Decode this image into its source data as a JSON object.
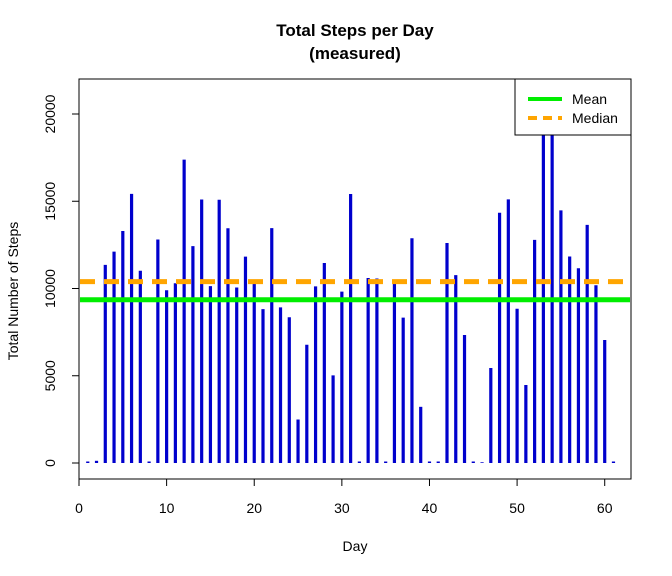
{
  "chart_data": {
    "type": "bar",
    "title": "Total Steps per Day",
    "subtitle": "(measured)",
    "xlabel": "Day",
    "ylabel": "Total Number of Steps",
    "xlim": [
      0,
      63
    ],
    "ylim": [
      0,
      22000
    ],
    "xticks": [
      0,
      10,
      20,
      30,
      40,
      50,
      60
    ],
    "yticks": [
      0,
      5000,
      10000,
      15000,
      20000
    ],
    "bar_color": "#0000cd",
    "grid": false,
    "legend_position": "top-right",
    "x": [
      1,
      2,
      3,
      4,
      5,
      6,
      7,
      8,
      9,
      10,
      11,
      12,
      13,
      14,
      15,
      16,
      17,
      18,
      19,
      20,
      21,
      22,
      23,
      24,
      25,
      26,
      27,
      28,
      29,
      30,
      31,
      32,
      33,
      34,
      35,
      36,
      37,
      38,
      39,
      40,
      41,
      42,
      43,
      44,
      45,
      46,
      47,
      48,
      49,
      50,
      51,
      52,
      53,
      54,
      55,
      56,
      57,
      58,
      59,
      60,
      61
    ],
    "values": [
      0,
      126,
      11352,
      12116,
      13294,
      15420,
      11015,
      0,
      12811,
      9900,
      10304,
      17382,
      12426,
      15098,
      10139,
      15084,
      13452,
      10056,
      11829,
      10395,
      8821,
      13460,
      8918,
      8355,
      2492,
      6778,
      10119,
      11458,
      5018,
      9819,
      15414,
      0,
      10600,
      10571,
      0,
      10439,
      8334,
      12883,
      3219,
      0,
      0,
      12608,
      10765,
      7336,
      0,
      41,
      5441,
      14339,
      15110,
      8841,
      4472,
      12787,
      20427,
      21194,
      14478,
      11834,
      11162,
      13646,
      10183,
      7047,
      0
    ],
    "series": [
      {
        "name": "Mean",
        "value": 9354.23,
        "color": "#00ee00",
        "style": "solid"
      },
      {
        "name": "Median",
        "value": 10395,
        "color": "#ffa500",
        "style": "dashed"
      }
    ]
  }
}
